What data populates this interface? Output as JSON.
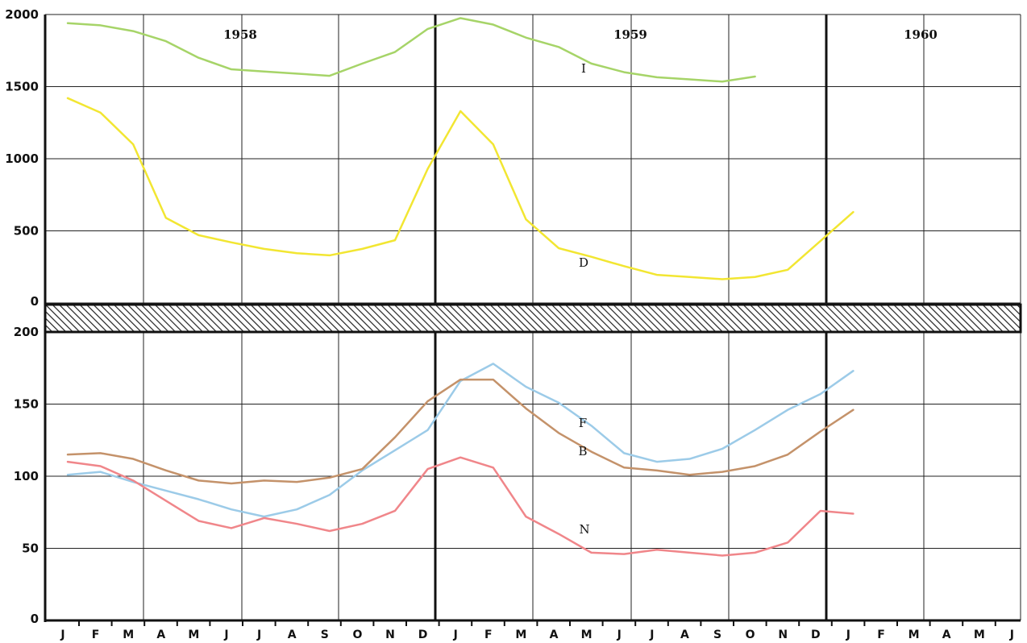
{
  "chart_data": [
    {
      "type": "line",
      "panel": "upper",
      "ylim": [
        0,
        2000
      ],
      "yticks": [
        "0",
        "500",
        "1000",
        "1500",
        "2000"
      ],
      "year_labels": [
        "1958",
        "1959",
        "1960"
      ],
      "grid": true,
      "series": [
        {
          "name": "I",
          "color": "#a6d468",
          "x": [
            "1958-01",
            "1958-02",
            "1958-03",
            "1958-04",
            "1958-05",
            "1958-06",
            "1958-07",
            "1958-08",
            "1958-09",
            "1958-10",
            "1958-11",
            "1958-12",
            "1959-01",
            "1959-02",
            "1959-03",
            "1959-04",
            "1959-05",
            "1959-06",
            "1959-07",
            "1959-08",
            "1959-09",
            "1959-10"
          ],
          "values": [
            1940,
            1925,
            1885,
            1815,
            1700,
            1620,
            1605,
            1590,
            1575,
            1660,
            1740,
            1900,
            1975,
            1930,
            1840,
            1775,
            1660,
            1600,
            1565,
            1550,
            1535,
            1570
          ]
        },
        {
          "name": "D",
          "color": "#f2e632",
          "x": [
            "1958-01",
            "1958-02",
            "1958-03",
            "1958-04",
            "1958-05",
            "1958-06",
            "1958-07",
            "1958-08",
            "1958-09",
            "1958-10",
            "1958-11",
            "1958-12",
            "1959-01",
            "1959-02",
            "1959-03",
            "1959-04",
            "1959-05",
            "1959-06",
            "1959-07",
            "1959-08",
            "1959-09",
            "1959-10",
            "1959-11",
            "1959-12",
            "1960-01"
          ],
          "values": [
            1420,
            1320,
            1100,
            590,
            470,
            420,
            375,
            345,
            330,
            375,
            435,
            930,
            1330,
            1100,
            580,
            380,
            320,
            255,
            195,
            180,
            165,
            180,
            230,
            430,
            630
          ]
        }
      ]
    },
    {
      "type": "line",
      "panel": "lower",
      "ylim": [
        0,
        200
      ],
      "yticks": [
        "0",
        "50",
        "100",
        "150",
        "200"
      ],
      "xtick_labels": [
        "J",
        "F",
        "M",
        "A",
        "M",
        "J",
        "J",
        "A",
        "S",
        "O",
        "N",
        "D",
        "J",
        "F",
        "M",
        "A",
        "M",
        "J",
        "J",
        "A",
        "S",
        "O",
        "N",
        "D",
        "J",
        "F",
        "M",
        "A",
        "M",
        "J"
      ],
      "grid": true,
      "series": [
        {
          "name": "F",
          "color": "#9ccbe8",
          "x": [
            "1958-01",
            "1958-02",
            "1958-03",
            "1958-04",
            "1958-05",
            "1958-06",
            "1958-07",
            "1958-08",
            "1958-09",
            "1958-10",
            "1958-11",
            "1958-12",
            "1959-01",
            "1959-02",
            "1959-03",
            "1959-04",
            "1959-05",
            "1959-06",
            "1959-07",
            "1959-08",
            "1959-09",
            "1959-10",
            "1959-11",
            "1959-12",
            "1960-01"
          ],
          "values": [
            101,
            103,
            96,
            90,
            84,
            77,
            72,
            77,
            87,
            104,
            118,
            132,
            166,
            178,
            162,
            151,
            135,
            116,
            110,
            112,
            119,
            132,
            146,
            157,
            173
          ]
        },
        {
          "name": "B",
          "color": "#c4926a",
          "x": [
            "1958-01",
            "1958-02",
            "1958-03",
            "1958-04",
            "1958-05",
            "1958-06",
            "1958-07",
            "1958-08",
            "1958-09",
            "1958-10",
            "1958-11",
            "1958-12",
            "1959-01",
            "1959-02",
            "1959-03",
            "1959-04",
            "1959-05",
            "1959-06",
            "1959-07",
            "1959-08",
            "1959-09",
            "1959-10",
            "1959-11",
            "1959-12",
            "1960-01"
          ],
          "values": [
            115,
            116,
            112,
            104,
            97,
            95,
            97,
            96,
            99,
            105,
            127,
            152,
            167,
            167,
            147,
            130,
            117,
            106,
            104,
            101,
            103,
            107,
            115,
            131,
            146
          ]
        },
        {
          "name": "N",
          "color": "#f0868a",
          "x": [
            "1958-01",
            "1958-02",
            "1958-03",
            "1958-04",
            "1958-05",
            "1958-06",
            "1958-07",
            "1958-08",
            "1958-09",
            "1958-10",
            "1958-11",
            "1958-12",
            "1959-01",
            "1959-02",
            "1959-03",
            "1959-04",
            "1959-05",
            "1959-06",
            "1959-07",
            "1959-08",
            "1959-09",
            "1959-10",
            "1959-11",
            "1959-12",
            "1960-01"
          ],
          "values": [
            110,
            107,
            97,
            83,
            69,
            64,
            71,
            67,
            62,
            67,
            76,
            105,
            113,
            106,
            72,
            60,
            47,
            46,
            49,
            47,
            45,
            47,
            54,
            76,
            74
          ]
        }
      ]
    }
  ],
  "hatch_color": "#222222"
}
